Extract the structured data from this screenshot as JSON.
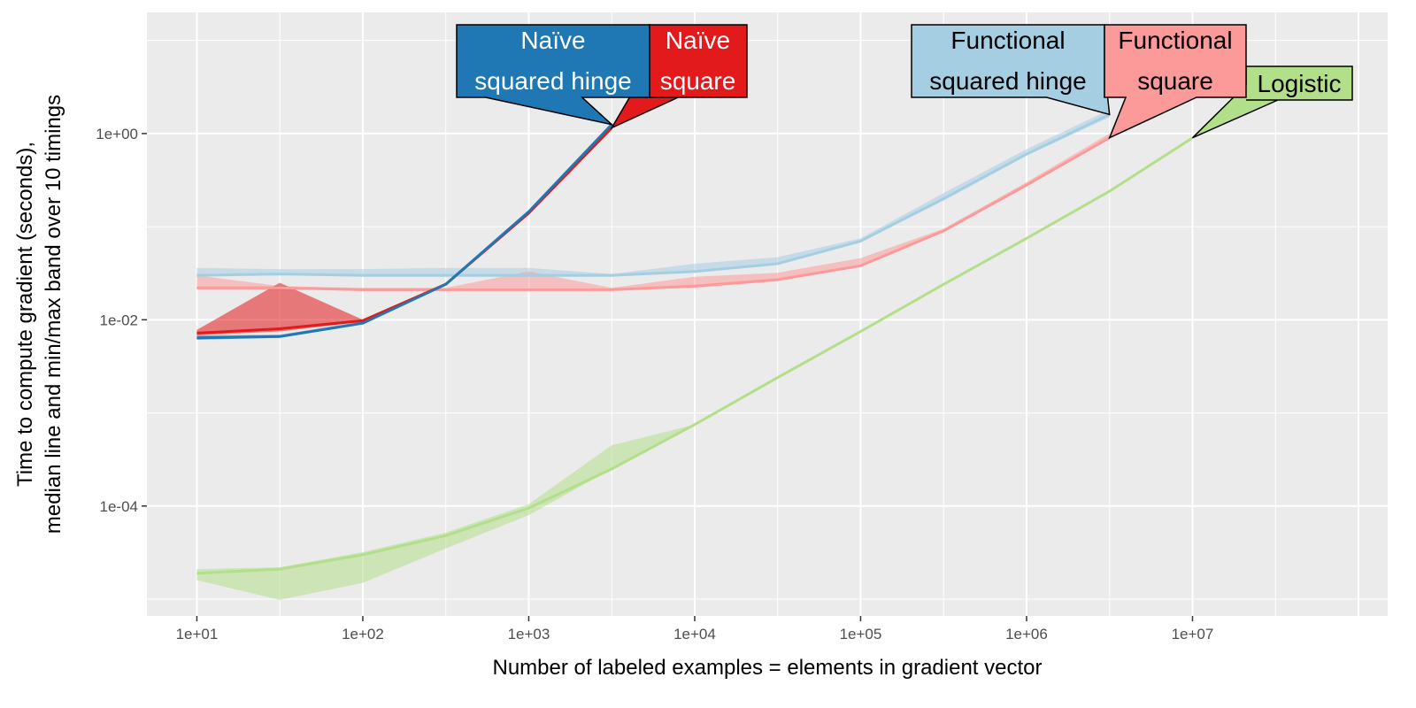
{
  "chart_data": {
    "type": "line",
    "xlabel": "Number of labeled examples = elements in gradient vector",
    "ylabel_lines": [
      "Time to compute gradient (seconds),",
      "median line and min/max band over 10 timings"
    ],
    "x_scale": "log10",
    "y_scale": "log10",
    "xlim": [
      5,
      150000000
    ],
    "ylim": [
      6.6e-06,
      20
    ],
    "x_ticks": [
      10,
      100,
      1000,
      10000,
      100000,
      1000000,
      10000000
    ],
    "x_tick_labels": [
      "1e+01",
      "1e+02",
      "1e+03",
      "1e+04",
      "1e+05",
      "1e+06",
      "1e+07"
    ],
    "y_ticks": [
      0.0001,
      0.01,
      1
    ],
    "y_tick_labels": [
      "1e-04",
      "1e-02",
      "1e+00"
    ],
    "grid": true,
    "legend": "none (direct labels)",
    "series": [
      {
        "name": "Logistic",
        "label_lines": [
          "Logistic"
        ],
        "color": "#b2df8a",
        "fill": "#b2df8a",
        "text_color": "#000000",
        "x": [
          10,
          31.6,
          100,
          316,
          1000,
          3162,
          10000,
          31623,
          100000,
          316228,
          1000000,
          3162278,
          10000000
        ],
        "median": [
          1.9e-05,
          2.1e-05,
          3e-05,
          4.8e-05,
          9.5e-05,
          0.00025,
          0.00075,
          0.0024,
          0.0075,
          0.024,
          0.075,
          0.24,
          0.9
        ],
        "min": [
          1.6e-05,
          9.8e-06,
          1.5e-05,
          3.5e-05,
          8e-05,
          0.00025,
          0.00075,
          0.0024,
          0.0075,
          0.024,
          0.075,
          0.24,
          0.9
        ],
        "max": [
          2.1e-05,
          2.2e-05,
          3.2e-05,
          5.2e-05,
          0.000105,
          0.00045,
          0.00075,
          0.0024,
          0.0075,
          0.024,
          0.075,
          0.24,
          0.9
        ]
      },
      {
        "name": "Functional squared hinge",
        "label_lines": [
          "Functional",
          "squared hinge"
        ],
        "color": "#a6cee3",
        "fill": "#a6cee3",
        "text_color": "#000000",
        "x": [
          10,
          31.6,
          100,
          316,
          1000,
          3162,
          10000,
          31623,
          100000,
          316228,
          1000000,
          3162278
        ],
        "median": [
          0.03,
          0.031,
          0.03,
          0.03,
          0.03,
          0.03,
          0.033,
          0.04,
          0.07,
          0.2,
          0.6,
          1.6
        ],
        "min": [
          0.029,
          0.03,
          0.029,
          0.029,
          0.029,
          0.029,
          0.032,
          0.039,
          0.068,
          0.19,
          0.58,
          1.5
        ],
        "max": [
          0.036,
          0.035,
          0.035,
          0.036,
          0.036,
          0.031,
          0.04,
          0.047,
          0.075,
          0.23,
          0.68,
          1.8
        ]
      },
      {
        "name": "Functional square",
        "label_lines": [
          "Functional",
          "square"
        ],
        "color": "#fb9a99",
        "fill": "#fb9a99",
        "text_color": "#000000",
        "x": [
          10,
          31.6,
          100,
          316,
          1000,
          3162,
          10000,
          31623,
          100000,
          316228,
          1000000,
          3162278
        ],
        "median": [
          0.022,
          0.022,
          0.021,
          0.021,
          0.021,
          0.021,
          0.023,
          0.027,
          0.038,
          0.09,
          0.28,
          0.9
        ],
        "min": [
          0.021,
          0.021,
          0.021,
          0.021,
          0.021,
          0.021,
          0.022,
          0.026,
          0.037,
          0.087,
          0.27,
          0.88
        ],
        "max": [
          0.03,
          0.023,
          0.022,
          0.022,
          0.033,
          0.022,
          0.029,
          0.032,
          0.046,
          0.095,
          0.3,
          1.0
        ]
      },
      {
        "name": "Naïve square",
        "label_lines": [
          "Naïve",
          "square"
        ],
        "color": "#e31a1c",
        "fill": "#e31a1c",
        "text_color": "#ffffff",
        "x": [
          10,
          31.6,
          100,
          316,
          1000,
          3162
        ],
        "median": [
          0.0072,
          0.008,
          0.0098,
          0.024,
          0.14,
          1.15
        ],
        "min": [
          0.0068,
          0.0075,
          0.0095,
          0.0235,
          0.135,
          1.1
        ],
        "max": [
          0.0078,
          0.025,
          0.01,
          0.025,
          0.145,
          1.2
        ]
      },
      {
        "name": "Naïve squared hinge",
        "label_lines": [
          "Naïve",
          "squared hinge"
        ],
        "color": "#1f78b4",
        "fill": "#1f78b4",
        "text_color": "#ffffff",
        "x": [
          10,
          31.6,
          100,
          316,
          1000,
          3162
        ],
        "median": [
          0.0064,
          0.0066,
          0.0092,
          0.024,
          0.145,
          1.25
        ],
        "min": [
          0.0061,
          0.0064,
          0.009,
          0.0235,
          0.14,
          1.2
        ],
        "max": [
          0.0068,
          0.0069,
          0.0096,
          0.025,
          0.15,
          1.3
        ]
      }
    ]
  }
}
